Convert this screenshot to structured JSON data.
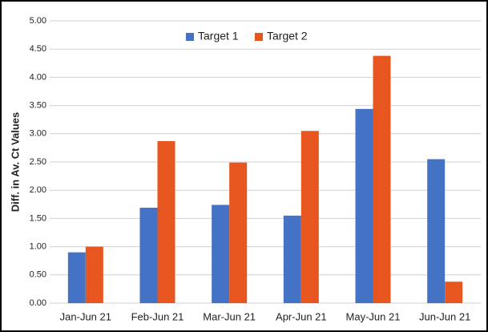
{
  "chart_data": {
    "type": "bar",
    "y_label": "Diff. in Av. Ct Values",
    "categories": [
      "Jan-Jun 21",
      "Feb-Jun 21",
      "Mar-Jun 21",
      "Apr-Jun 21",
      "May-Jun 21",
      "Jun-Jun 21"
    ],
    "series": [
      {
        "name": "Target 1",
        "color": "#4472c4",
        "values": [
          0.9,
          1.69,
          1.74,
          1.55,
          3.44,
          2.55
        ]
      },
      {
        "name": "Target 2",
        "color": "#e8561f",
        "values": [
          1.0,
          2.87,
          2.49,
          3.05,
          4.38,
          0.38
        ]
      }
    ],
    "ylim": [
      0,
      5
    ],
    "yticks": [
      {
        "value": 0,
        "label": "0.00"
      },
      {
        "value": 0.5,
        "label": "0.50"
      },
      {
        "value": 1,
        "label": "1.00"
      },
      {
        "value": 1.5,
        "label": "1.50"
      },
      {
        "value": 2,
        "label": "2.00"
      },
      {
        "value": 2.5,
        "label": "2.50"
      },
      {
        "value": 3,
        "label": "3.00"
      },
      {
        "value": 3.5,
        "label": "3.50"
      },
      {
        "value": 4,
        "label": "4.00"
      },
      {
        "value": 4.5,
        "label": "4.50"
      },
      {
        "value": 5,
        "label": "5.00"
      }
    ],
    "grid": true,
    "legend": "top"
  }
}
